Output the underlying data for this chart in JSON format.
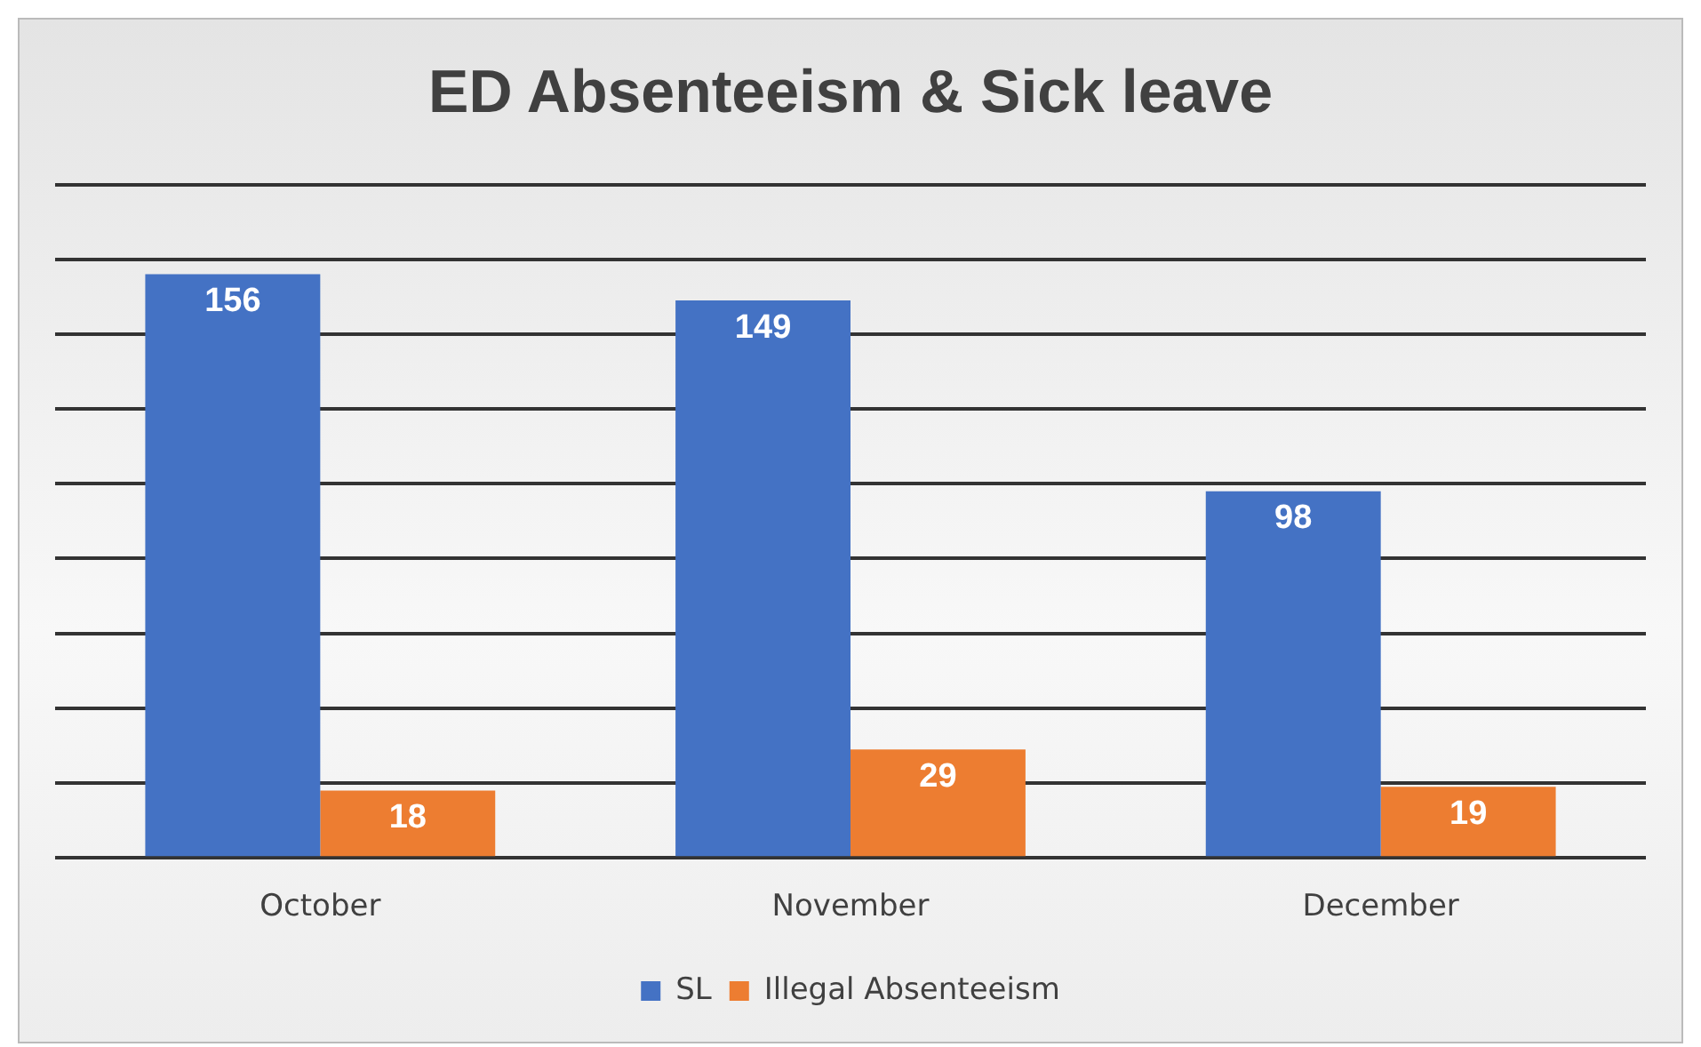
{
  "chart_data": {
    "type": "bar",
    "title": "ED Absenteeism & Sick leave",
    "categories": [
      "October",
      "November",
      "December"
    ],
    "series": [
      {
        "name": "SL",
        "color": "#4472c4",
        "values": [
          156,
          149,
          98
        ]
      },
      {
        "name": "Illegal Absenteeism",
        "color": "#ed7d31",
        "values": [
          18,
          29,
          19
        ]
      }
    ],
    "ylim": [
      0,
      180
    ],
    "yticks": [
      {
        "value": 0,
        "label": null
      },
      {
        "value": 20,
        "label": null
      },
      {
        "value": 40,
        "label": null
      },
      {
        "value": 60,
        "label": null
      },
      {
        "value": 80,
        "label": null
      },
      {
        "value": 100,
        "label": null
      },
      {
        "value": 120,
        "label": null
      },
      {
        "value": 140,
        "label": null
      },
      {
        "value": 160,
        "label": null
      },
      {
        "value": 180,
        "label": null
      }
    ],
    "tick_labels": "x",
    "grid": "y",
    "legend": "bottom",
    "data_labels": true
  }
}
